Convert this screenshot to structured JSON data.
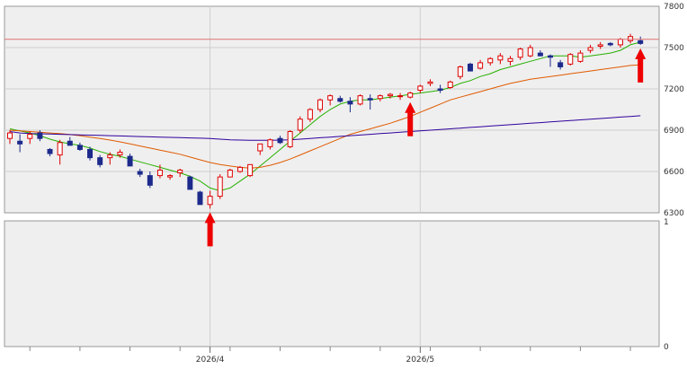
{
  "chart_data": {
    "type": "candlestick",
    "title": "",
    "xlabel": "",
    "ylabel": "",
    "ylim": [
      6300,
      7800
    ],
    "y_ticks": [
      "7800",
      "7500",
      "7200",
      "6900",
      "6600",
      "6300"
    ],
    "volume_panel": {
      "ylim": [
        0,
        1
      ],
      "y_ticks": [
        "1",
        "0"
      ],
      "values": []
    },
    "x_tick_labels": [
      {
        "label": "2026/4",
        "index": 20
      },
      {
        "label": "2026/5",
        "index": 41
      }
    ],
    "resistance_line": 7560,
    "candles": [
      [
        6840,
        6900,
        6800,
        6880
      ],
      [
        6820,
        6870,
        6740,
        6800
      ],
      [
        6840,
        6890,
        6800,
        6870
      ],
      [
        6880,
        6900,
        6820,
        6840
      ],
      [
        6760,
        6770,
        6710,
        6730
      ],
      [
        6720,
        6830,
        6650,
        6810
      ],
      [
        6820,
        6850,
        6790,
        6790
      ],
      [
        6790,
        6810,
        6750,
        6760
      ],
      [
        6760,
        6780,
        6680,
        6700
      ],
      [
        6700,
        6720,
        6630,
        6650
      ],
      [
        6700,
        6740,
        6650,
        6720
      ],
      [
        6720,
        6760,
        6700,
        6740
      ],
      [
        6710,
        6730,
        6640,
        6640
      ],
      [
        6600,
        6620,
        6560,
        6580
      ],
      [
        6570,
        6600,
        6480,
        6500
      ],
      [
        6570,
        6650,
        6550,
        6610
      ],
      [
        6560,
        6580,
        6540,
        6570
      ],
      [
        6590,
        6620,
        6560,
        6610
      ],
      [
        6560,
        6570,
        6480,
        6470
      ],
      [
        6450,
        6460,
        6360,
        6360
      ],
      [
        6360,
        6460,
        6330,
        6420
      ],
      [
        6420,
        6580,
        6400,
        6560
      ],
      [
        6560,
        6620,
        6560,
        6610
      ],
      [
        6600,
        6640,
        6590,
        6630
      ],
      [
        6570,
        6650,
        6560,
        6650
      ],
      [
        6750,
        6800,
        6720,
        6800
      ],
      [
        6780,
        6840,
        6760,
        6830
      ],
      [
        6840,
        6860,
        6800,
        6810
      ],
      [
        6780,
        6900,
        6770,
        6890
      ],
      [
        6900,
        7000,
        6880,
        6980
      ],
      [
        6980,
        7060,
        6960,
        7050
      ],
      [
        7050,
        7130,
        7030,
        7120
      ],
      [
        7120,
        7160,
        7080,
        7150
      ],
      [
        7130,
        7150,
        7100,
        7110
      ],
      [
        7110,
        7140,
        7030,
        7090
      ],
      [
        7090,
        7160,
        7080,
        7150
      ],
      [
        7130,
        7160,
        7050,
        7120
      ],
      [
        7130,
        7160,
        7110,
        7150
      ],
      [
        7150,
        7170,
        7130,
        7160
      ],
      [
        7150,
        7170,
        7120,
        7150
      ],
      [
        7140,
        7180,
        7130,
        7170
      ],
      [
        7190,
        7230,
        7170,
        7220
      ],
      [
        7240,
        7270,
        7220,
        7250
      ],
      [
        7200,
        7230,
        7170,
        7190
      ],
      [
        7210,
        7260,
        7200,
        7250
      ],
      [
        7290,
        7370,
        7270,
        7360
      ],
      [
        7380,
        7390,
        7330,
        7330
      ],
      [
        7350,
        7410,
        7340,
        7390
      ],
      [
        7390,
        7430,
        7370,
        7420
      ],
      [
        7410,
        7460,
        7380,
        7440
      ],
      [
        7400,
        7440,
        7370,
        7420
      ],
      [
        7430,
        7500,
        7410,
        7490
      ],
      [
        7440,
        7520,
        7430,
        7500
      ],
      [
        7460,
        7480,
        7440,
        7440
      ],
      [
        7440,
        7450,
        7360,
        7430
      ],
      [
        7390,
        7410,
        7340,
        7360
      ],
      [
        7380,
        7460,
        7370,
        7450
      ],
      [
        7400,
        7480,
        7390,
        7460
      ],
      [
        7480,
        7520,
        7460,
        7500
      ],
      [
        7510,
        7540,
        7490,
        7520
      ],
      [
        7530,
        7540,
        7510,
        7520
      ],
      [
        7520,
        7570,
        7500,
        7560
      ],
      [
        7550,
        7600,
        7530,
        7580
      ],
      [
        7550,
        7580,
        7520,
        7530
      ]
    ],
    "series": [
      {
        "color": "#27b000",
        "values": [
          6910,
          6895,
          6880,
          6860,
          6835,
          6815,
          6800,
          6790,
          6770,
          6745,
          6725,
          6710,
          6690,
          6670,
          6650,
          6630,
          6610,
          6590,
          6565,
          6530,
          6480,
          6460,
          6480,
          6530,
          6580,
          6640,
          6700,
          6760,
          6820,
          6880,
          6940,
          7000,
          7050,
          7090,
          7110,
          7120,
          7120,
          7130,
          7140,
          7150,
          7160,
          7170,
          7180,
          7190,
          7210,
          7240,
          7260,
          7290,
          7310,
          7340,
          7360,
          7380,
          7400,
          7420,
          7440,
          7440,
          7440,
          7430,
          7440,
          7450,
          7460,
          7480,
          7520,
          7540
        ]
      },
      {
        "color": "#e05a00",
        "values": [
          6900,
          6895,
          6890,
          6885,
          6880,
          6875,
          6868,
          6860,
          6850,
          6840,
          6828,
          6815,
          6800,
          6785,
          6770,
          6755,
          6740,
          6725,
          6705,
          6685,
          6665,
          6650,
          6640,
          6630,
          6625,
          6630,
          6645,
          6665,
          6690,
          6720,
          6750,
          6780,
          6810,
          6840,
          6870,
          6890,
          6910,
          6930,
          6950,
          6975,
          7000,
          7030,
          7060,
          7090,
          7120,
          7140,
          7160,
          7180,
          7200,
          7220,
          7240,
          7255,
          7270,
          7280,
          7290,
          7300,
          7310,
          7320,
          7330,
          7340,
          7350,
          7360,
          7370,
          7375
        ]
      },
      {
        "color": "#30009c",
        "values": [
          6890,
          6880,
          6876,
          6874,
          6872,
          6870,
          6868,
          6866,
          6864,
          6862,
          6860,
          6858,
          6856,
          6854,
          6852,
          6850,
          6848,
          6846,
          6844,
          6842,
          6840,
          6835,
          6830,
          6828,
          6826,
          6826,
          6826,
          6828,
          6830,
          6835,
          6840,
          6845,
          6850,
          6855,
          6860,
          6865,
          6870,
          6875,
          6880,
          6885,
          6890,
          6895,
          6900,
          6905,
          6910,
          6915,
          6920,
          6925,
          6930,
          6935,
          6940,
          6945,
          6950,
          6955,
          6960,
          6965,
          6970,
          6975,
          6980,
          6985,
          6990,
          6995,
          7000,
          7005
        ]
      }
    ],
    "signal_arrows": [
      20,
      40,
      63
    ],
    "colors": {
      "up": "#dd0000",
      "down": "#1c2a8c",
      "panel_bg": "#efefef",
      "grid": "#cfcfcf",
      "resistance": "#e07070",
      "arrow": "#ee0000"
    }
  }
}
